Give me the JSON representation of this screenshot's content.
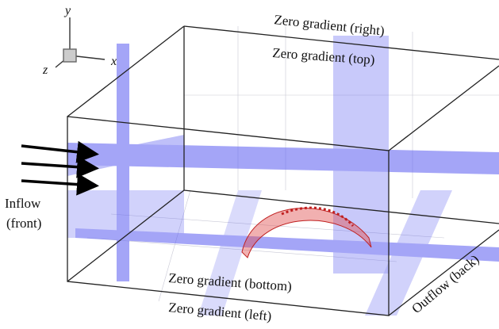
{
  "axes": {
    "y": "y",
    "x": "x",
    "z": "z"
  },
  "labels": {
    "right": "Zero gradient (right)",
    "top": "Zero gradient (top)",
    "bottom": "Zero gradient (bottom)",
    "left": "Zero gradient (left)",
    "back": "Outflow (back)"
  },
  "inflow": {
    "line1": "Inflow",
    "line2": "(front)"
  }
}
